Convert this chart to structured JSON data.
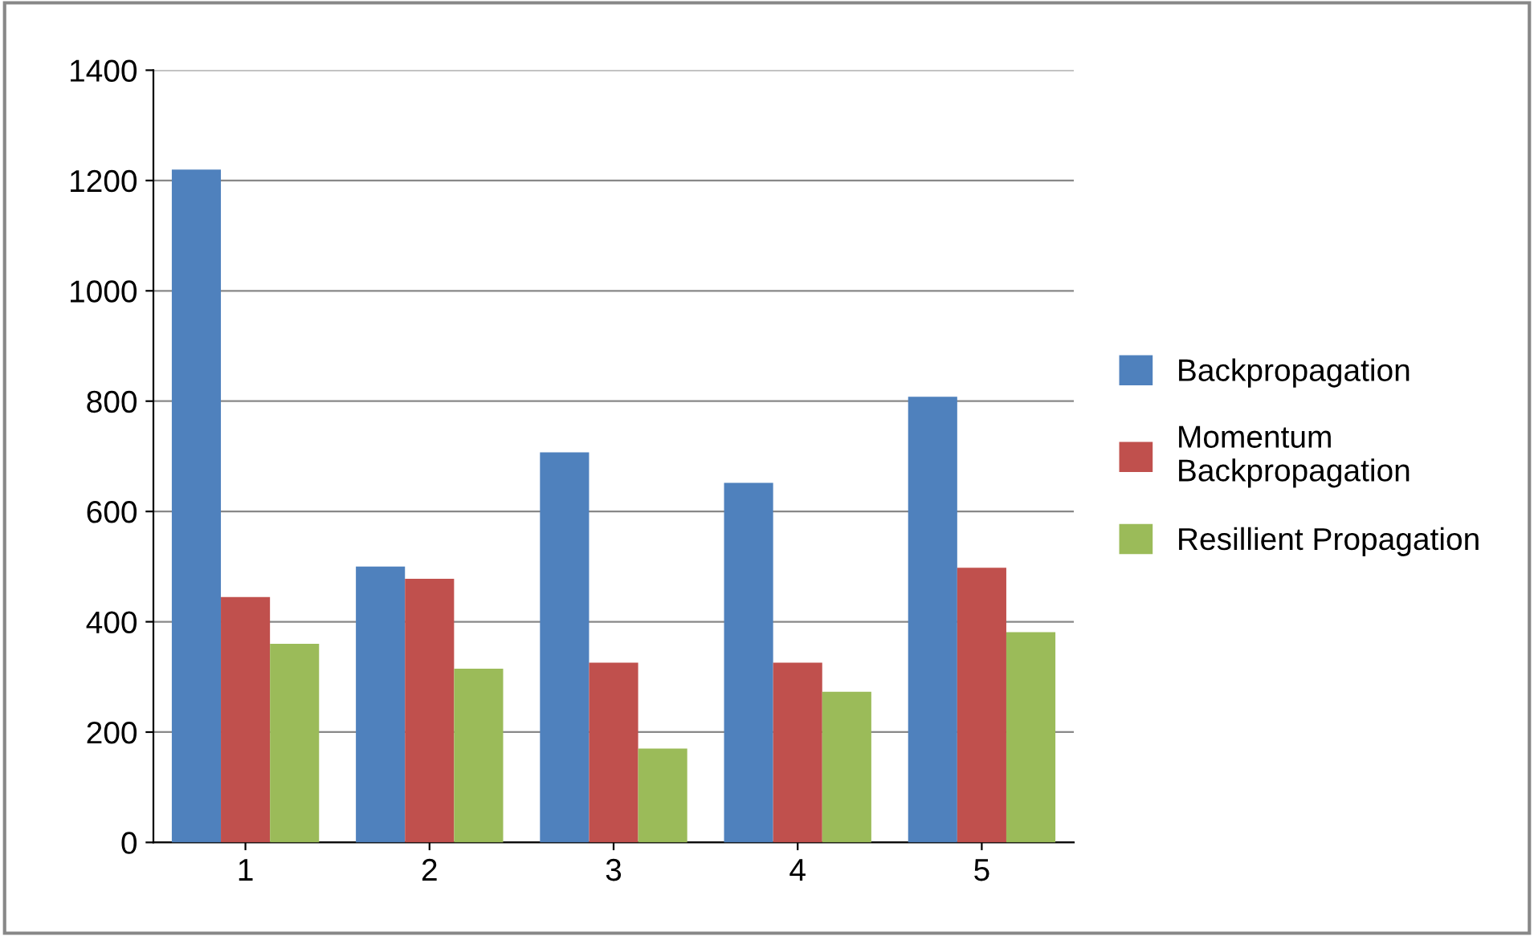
{
  "chart_data": {
    "type": "bar",
    "categories": [
      "1",
      "2",
      "3",
      "4",
      "5"
    ],
    "series": [
      {
        "name": "Backpropagation",
        "color": "#4f81bd",
        "values": [
          1220,
          500,
          707,
          652,
          808
        ]
      },
      {
        "name": "Momentum\nBackpropagation",
        "color": "#c0504d",
        "values": [
          445,
          478,
          326,
          326,
          498
        ]
      },
      {
        "name": "Resillient Propagation",
        "color": "#9bbb59",
        "values": [
          360,
          315,
          170,
          273,
          381
        ]
      }
    ],
    "ylim": [
      0,
      1400
    ],
    "yticks": [
      0,
      200,
      400,
      600,
      800,
      1000,
      1200,
      1400
    ],
    "grid": "y",
    "legend": "right"
  }
}
